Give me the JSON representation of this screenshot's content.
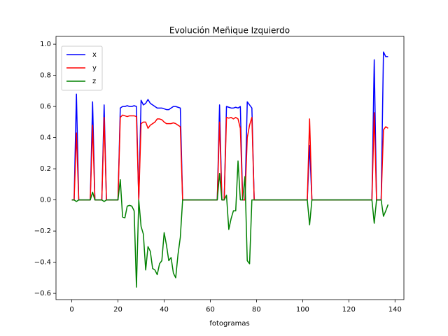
{
  "chart_data": {
    "type": "line",
    "title": "Evolución Meñique Izquierdo",
    "x_label": "fotogramas",
    "x": [
      0,
      1,
      2,
      3,
      4,
      5,
      6,
      7,
      8,
      9,
      10,
      11,
      12,
      13,
      14,
      15,
      16,
      17,
      18,
      19,
      20,
      21,
      22,
      23,
      24,
      25,
      26,
      27,
      28,
      29,
      30,
      31,
      32,
      33,
      34,
      35,
      36,
      37,
      38,
      39,
      40,
      41,
      42,
      43,
      44,
      45,
      46,
      47,
      48,
      49,
      50,
      51,
      52,
      53,
      54,
      55,
      56,
      57,
      58,
      59,
      60,
      61,
      62,
      63,
      64,
      65,
      66,
      67,
      68,
      69,
      70,
      71,
      72,
      73,
      74,
      75,
      76,
      77,
      78,
      79,
      80,
      81,
      82,
      83,
      84,
      85,
      86,
      87,
      88,
      89,
      90,
      91,
      92,
      93,
      94,
      95,
      96,
      97,
      98,
      99,
      100,
      101,
      102,
      103,
      104,
      105,
      106,
      107,
      108,
      109,
      110,
      111,
      112,
      113,
      114,
      115,
      116,
      117,
      118,
      119,
      120,
      121,
      122,
      123,
      124,
      125,
      126,
      127,
      128,
      129,
      130,
      131,
      132,
      133,
      134,
      135,
      136,
      137
    ],
    "series": [
      {
        "name": "x",
        "color": "#0000ff",
        "values": [
          0,
          0,
          0.68,
          0,
          0,
          0,
          0,
          0,
          0,
          0.63,
          0,
          0,
          0,
          0,
          0.61,
          0,
          0,
          0,
          0,
          0,
          0,
          0.59,
          0.6,
          0.6,
          0.605,
          0.6,
          0.6,
          0.605,
          0.6,
          0,
          0.64,
          0.61,
          0.62,
          0.645,
          0.62,
          0.61,
          0.6,
          0.59,
          0.59,
          0.59,
          0.585,
          0.58,
          0.58,
          0.59,
          0.6,
          0.6,
          0.595,
          0.59,
          0,
          0,
          0,
          0,
          0,
          0,
          0,
          0,
          0,
          0,
          0,
          0,
          0,
          0,
          0,
          0,
          0.61,
          0,
          0,
          0.6,
          0.595,
          0.59,
          0.59,
          0.595,
          0.59,
          0.6,
          0,
          0,
          0.63,
          0.61,
          0.59,
          0,
          0,
          0,
          0,
          0,
          0,
          0,
          0,
          0,
          0,
          0,
          0,
          0,
          0,
          0,
          0,
          0,
          0,
          0,
          0,
          0,
          0,
          0,
          0,
          0.35,
          0,
          0,
          0,
          0,
          0,
          0,
          0,
          0,
          0,
          0,
          0,
          0,
          0,
          0,
          0,
          0,
          0,
          0,
          0,
          0,
          0,
          0,
          0,
          0,
          0,
          0,
          0,
          0.9,
          0,
          0,
          0,
          0.95,
          0.92,
          0.92
        ]
      },
      {
        "name": "y",
        "color": "#ff0000",
        "values": [
          0,
          0,
          0.43,
          0,
          0,
          0,
          0,
          0,
          0,
          0.48,
          0,
          0,
          0,
          0,
          0.53,
          0,
          0,
          0,
          0,
          0,
          0,
          0.53,
          0.545,
          0.54,
          0.535,
          0.54,
          0.54,
          0.54,
          0.535,
          0,
          0.49,
          0.5,
          0.5,
          0.46,
          0.48,
          0.49,
          0.5,
          0.52,
          0.52,
          0.515,
          0.5,
          0.49,
          0.49,
          0.49,
          0.495,
          0.49,
          0.48,
          0.47,
          0,
          0,
          0,
          0,
          0,
          0,
          0,
          0,
          0,
          0,
          0,
          0,
          0,
          0,
          0,
          0,
          0.5,
          0,
          0,
          0.53,
          0.525,
          0.53,
          0.52,
          0.53,
          0.52,
          0.46,
          0,
          0,
          0.4,
          0.48,
          0.53,
          0,
          0,
          0,
          0,
          0,
          0,
          0,
          0,
          0,
          0,
          0,
          0,
          0,
          0,
          0,
          0,
          0,
          0,
          0,
          0,
          0,
          0,
          0,
          0,
          0.52,
          0,
          0,
          0,
          0,
          0,
          0,
          0,
          0,
          0,
          0,
          0,
          0,
          0,
          0,
          0,
          0,
          0,
          0,
          0,
          0,
          0,
          0,
          0,
          0,
          0,
          0,
          0,
          0.56,
          0,
          0,
          0,
          0.45,
          0.47,
          0.46
        ]
      },
      {
        "name": "z",
        "color": "#008000",
        "values": [
          0,
          0,
          -0.01,
          0,
          0,
          0,
          0,
          0,
          0,
          0.05,
          0,
          0,
          0,
          0,
          -0.01,
          0,
          0,
          0,
          0,
          0,
          0,
          0.13,
          -0.11,
          -0.115,
          -0.04,
          -0.035,
          -0.04,
          -0.07,
          -0.56,
          0,
          -0.17,
          -0.22,
          -0.45,
          -0.3,
          -0.33,
          -0.44,
          -0.45,
          -0.48,
          -0.41,
          -0.39,
          -0.21,
          -0.29,
          -0.39,
          -0.37,
          -0.47,
          -0.5,
          -0.35,
          -0.24,
          0,
          0,
          0,
          0,
          0,
          0,
          0,
          0,
          0,
          0,
          0,
          0,
          0,
          0,
          0,
          0,
          0.17,
          0,
          0,
          0.03,
          -0.19,
          -0.12,
          -0.07,
          -0.07,
          0.25,
          0,
          0,
          0.15,
          -0.39,
          -0.41,
          0,
          0,
          0,
          0,
          0,
          0,
          0,
          0,
          0,
          0,
          0,
          0,
          0,
          0,
          0,
          0,
          0,
          0,
          0,
          0,
          0,
          0,
          0,
          0,
          0,
          -0.16,
          0,
          0,
          0,
          0,
          0,
          0,
          0,
          0,
          0,
          0,
          0,
          0,
          0,
          0,
          0,
          0,
          0,
          0,
          0,
          0,
          0,
          0,
          0,
          0,
          0,
          0,
          0,
          -0.15,
          0,
          0,
          0,
          -0.105,
          -0.07,
          -0.03
        ]
      }
    ],
    "xlim": [
      -6.85,
      143.85
    ],
    "xticks": [
      0,
      20,
      40,
      60,
      80,
      100,
      120,
      140
    ],
    "ylim": [
      -0.64,
      1.05
    ],
    "yticks": [
      {
        "value": -0.6,
        "label": "−0.6"
      },
      {
        "value": -0.4,
        "label": "−0.4"
      },
      {
        "value": -0.2,
        "label": "−0.2"
      },
      {
        "value": 0,
        "label": "0.0"
      },
      {
        "value": 0.2,
        "label": "0.2"
      },
      {
        "value": 0.4,
        "label": "0.4"
      },
      {
        "value": 0.6,
        "label": "0.6"
      },
      {
        "value": 0.8,
        "label": "0.8"
      },
      {
        "value": 1.0,
        "label": "1.0"
      }
    ],
    "grid": false,
    "legend": "upper left"
  }
}
